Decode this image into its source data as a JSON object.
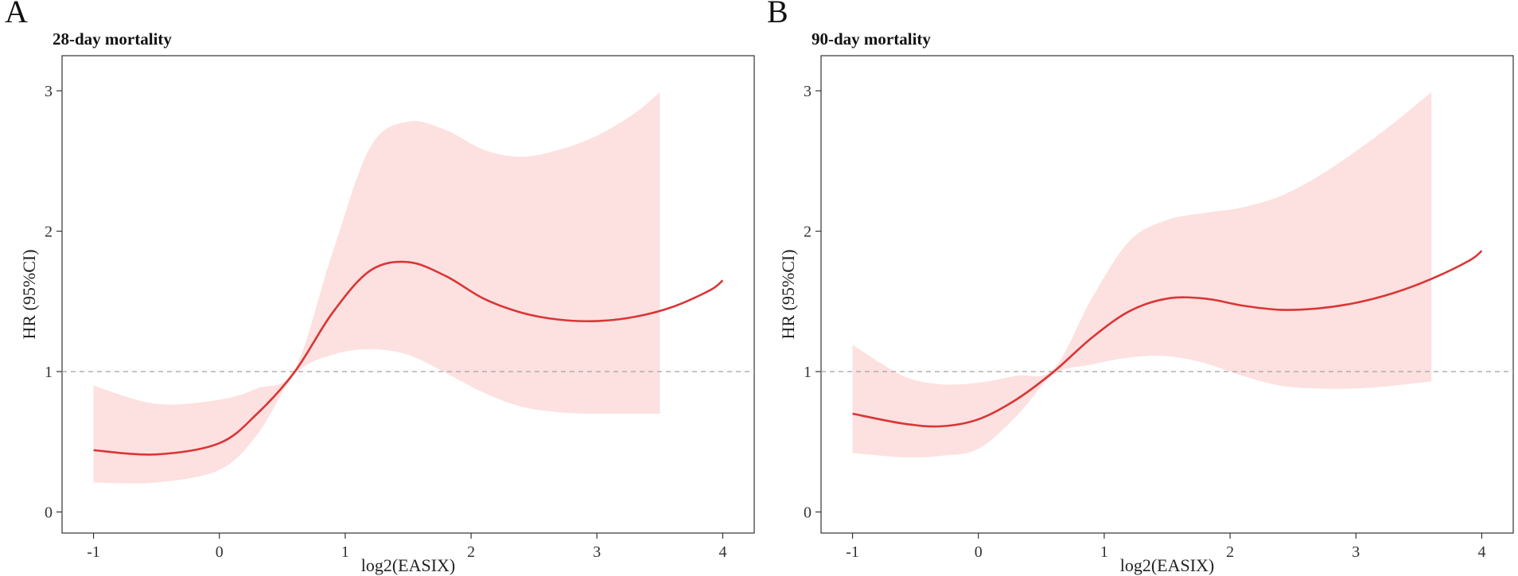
{
  "chart_data": [
    {
      "type": "line",
      "panel_label": "A",
      "title": "28-day mortality",
      "xlabel": "log2(EASIX)",
      "ylabel": "HR (95%CI)",
      "xlim": [
        -1.25,
        4.25
      ],
      "ylim": [
        -0.15,
        3.25
      ],
      "xticks": [
        -1,
        0,
        1,
        2,
        3,
        4
      ],
      "yticks": [
        0,
        1,
        2,
        3
      ],
      "reference_line": 1,
      "series": [
        {
          "name": "HR",
          "color": "#d93636",
          "x": [
            -1.0,
            -0.5,
            0.0,
            0.3,
            0.6,
            0.9,
            1.2,
            1.5,
            1.8,
            2.1,
            2.4,
            2.7,
            3.0,
            3.3,
            3.6,
            3.9,
            4.0
          ],
          "y": [
            0.44,
            0.41,
            0.49,
            0.7,
            1.0,
            1.42,
            1.72,
            1.78,
            1.68,
            1.52,
            1.42,
            1.37,
            1.36,
            1.39,
            1.46,
            1.58,
            1.65
          ]
        }
      ],
      "ci_band": {
        "color": "#fde0e0",
        "x": [
          -1.0,
          -0.5,
          0.0,
          0.3,
          0.6,
          0.9,
          1.2,
          1.5,
          1.8,
          2.1,
          2.4,
          2.7,
          3.0,
          3.3,
          3.5
        ],
        "lower": [
          0.21,
          0.21,
          0.3,
          0.55,
          0.98,
          1.12,
          1.16,
          1.12,
          0.99,
          0.85,
          0.75,
          0.71,
          0.7,
          0.7,
          0.7
        ],
        "upper": [
          0.9,
          0.77,
          0.8,
          0.88,
          1.02,
          1.85,
          2.6,
          2.78,
          2.72,
          2.58,
          2.53,
          2.58,
          2.68,
          2.84,
          2.99
        ]
      }
    },
    {
      "type": "line",
      "panel_label": "B",
      "title": "90-day mortality",
      "xlabel": "log2(EASIX)",
      "ylabel": "HR (95%CI)",
      "xlim": [
        -1.25,
        4.25
      ],
      "ylim": [
        -0.15,
        3.25
      ],
      "xticks": [
        -1,
        0,
        1,
        2,
        3,
        4
      ],
      "yticks": [
        0,
        1,
        2,
        3
      ],
      "reference_line": 1,
      "series": [
        {
          "name": "HR",
          "color": "#d93636",
          "x": [
            -1.0,
            -0.6,
            -0.3,
            0.0,
            0.3,
            0.6,
            0.9,
            1.2,
            1.5,
            1.8,
            2.1,
            2.4,
            2.7,
            3.0,
            3.3,
            3.6,
            3.9,
            4.0
          ],
          "y": [
            0.7,
            0.63,
            0.61,
            0.66,
            0.8,
            1.0,
            1.24,
            1.43,
            1.52,
            1.52,
            1.47,
            1.44,
            1.45,
            1.49,
            1.56,
            1.66,
            1.79,
            1.86
          ]
        }
      ],
      "ci_band": {
        "color": "#fde0e0",
        "x": [
          -1.0,
          -0.6,
          -0.3,
          0.0,
          0.3,
          0.6,
          0.9,
          1.2,
          1.5,
          1.8,
          2.1,
          2.4,
          2.7,
          3.0,
          3.3,
          3.6
        ],
        "lower": [
          0.42,
          0.39,
          0.4,
          0.45,
          0.68,
          0.98,
          1.05,
          1.1,
          1.11,
          1.06,
          0.97,
          0.9,
          0.88,
          0.88,
          0.9,
          0.93
        ],
        "upper": [
          1.19,
          0.97,
          0.91,
          0.92,
          0.97,
          1.02,
          1.52,
          1.93,
          2.08,
          2.13,
          2.17,
          2.25,
          2.39,
          2.57,
          2.77,
          2.99
        ]
      }
    }
  ]
}
